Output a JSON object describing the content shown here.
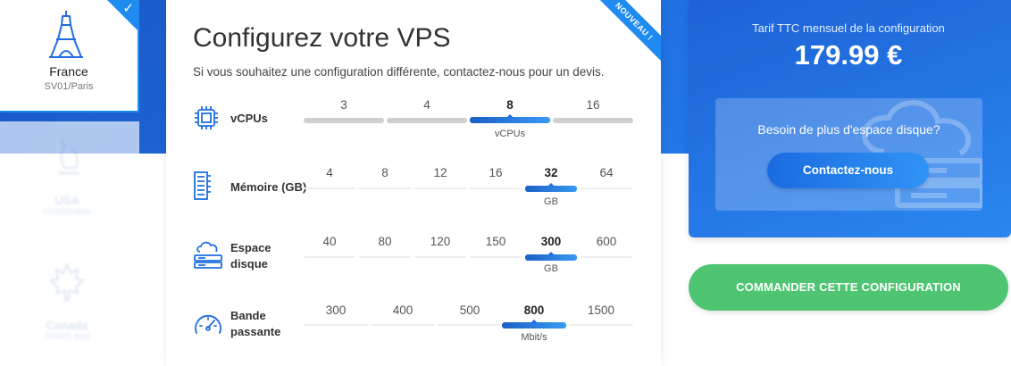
{
  "locations": {
    "selected": {
      "name": "France",
      "sub": "SV01/Paris"
    },
    "faded": [
      {
        "name": "USA",
        "sub": "SV03/Dallas"
      },
      {
        "name": "Canada",
        "sub": "SV04/Laval"
      }
    ]
  },
  "config": {
    "ribbon": "NOUVEAU !",
    "title": "Configurez votre VPS",
    "subtitle": "Si vous souhaitez une configuration différente, contactez-nous pour un devis.",
    "rows": [
      {
        "label": "vCPUs",
        "icon": "cpu-icon",
        "options": [
          "3",
          "4",
          "8",
          "16"
        ],
        "selected": "8",
        "unit": "vCPUs"
      },
      {
        "label": "Mémoire (GB)",
        "icon": "memory-icon",
        "options": [
          "4",
          "8",
          "12",
          "16",
          "32",
          "64"
        ],
        "selected": "32",
        "unit": "GB"
      },
      {
        "label": "Espace disque",
        "label_lines": [
          "Espace",
          "disque"
        ],
        "icon": "hard-disk-icon",
        "options": [
          "40",
          "80",
          "120",
          "150",
          "300",
          "600"
        ],
        "selected": "300",
        "unit": "GB"
      },
      {
        "label": "Bande passante",
        "label_lines": [
          "Bande",
          "passante"
        ],
        "icon": "speedometer-icon",
        "options": [
          "300",
          "400",
          "500",
          "800",
          "1500"
        ],
        "selected": "800",
        "unit": "Mbit/s"
      }
    ]
  },
  "pricing": {
    "label": "Tarif TTC mensuel de la configuration",
    "value": "179.99 €",
    "disk_prompt": "Besoin de plus d'espace disque?",
    "contact_label": "Contactez-nous",
    "order_label": "COMMANDER CETTE CONFIGURATION"
  },
  "colors": {
    "primary": "#1f6ee0",
    "accent": "#1f8bf0",
    "order": "#4fc573"
  }
}
